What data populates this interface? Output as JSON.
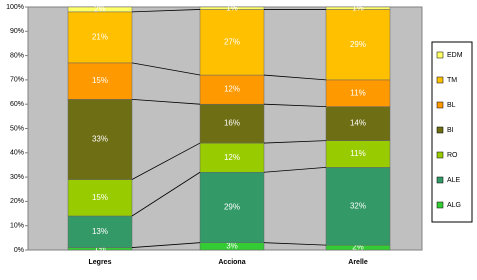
{
  "chart_data": {
    "type": "stacked-bar-100",
    "categories": [
      "Legres",
      "Acciona",
      "Arelle"
    ],
    "series": [
      {
        "name": "ALG",
        "color": "#33cc33",
        "values": [
          1,
          3,
          2
        ],
        "value_labels": [
          "1%",
          "3%",
          "2%"
        ]
      },
      {
        "name": "ALE",
        "color": "#339966",
        "values": [
          13,
          29,
          32
        ],
        "value_labels": [
          "13%",
          "29%",
          "32%"
        ]
      },
      {
        "name": "RO",
        "color": "#99cc00",
        "values": [
          15,
          12,
          11
        ],
        "value_labels": [
          "15%",
          "12%",
          "11%"
        ]
      },
      {
        "name": "BI",
        "color": "#6e6e14",
        "values": [
          33,
          16,
          14
        ],
        "value_labels": [
          "33%",
          "16%",
          "14%"
        ]
      },
      {
        "name": "BL",
        "color": "#ff9900",
        "values": [
          15,
          12,
          11
        ],
        "value_labels": [
          "15%",
          "12%",
          "11%"
        ]
      },
      {
        "name": "TM",
        "color": "#ffc000",
        "values": [
          21,
          27,
          29
        ],
        "value_labels": [
          "21%",
          "27%",
          "29%"
        ]
      },
      {
        "name": "EDM",
        "color": "#ffff66",
        "values": [
          2,
          1,
          1
        ],
        "value_labels": [
          "2%",
          "1%",
          "1%"
        ]
      }
    ],
    "ylim": [
      0,
      100
    ],
    "yticks": [
      {
        "value": 0,
        "label": "0%"
      },
      {
        "value": 10,
        "label": "10%"
      },
      {
        "value": 20,
        "label": "20%"
      },
      {
        "value": 30,
        "label": "30%"
      },
      {
        "value": 40,
        "label": "40%"
      },
      {
        "value": 50,
        "label": "50%"
      },
      {
        "value": 60,
        "label": "60%"
      },
      {
        "value": 70,
        "label": "70%"
      },
      {
        "value": 80,
        "label": "80%"
      },
      {
        "value": 90,
        "label": "90%"
      },
      {
        "value": 100,
        "label": "100%"
      }
    ],
    "legend": "right"
  }
}
